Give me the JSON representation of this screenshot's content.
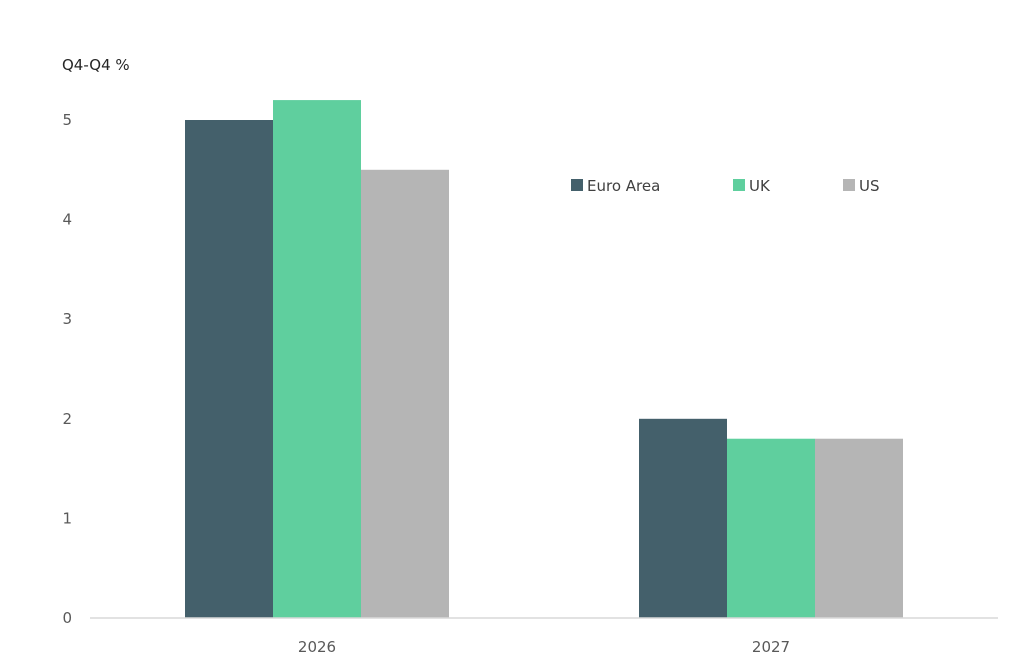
{
  "chart_data": {
    "type": "bar",
    "unit_label": "Q4-Q4 %",
    "categories": [
      "2026",
      "2027"
    ],
    "series": [
      {
        "name": "Euro Area",
        "color": "#44606b",
        "values": [
          5.0,
          2.0
        ]
      },
      {
        "name": "UK",
        "color": "#5fcf9e",
        "values": [
          5.2,
          1.8
        ]
      },
      {
        "name": "US",
        "color": "#b5b5b5",
        "values": [
          4.5,
          1.8
        ]
      }
    ],
    "ylim": [
      0,
      5
    ],
    "yticks": [
      0,
      1,
      2,
      3,
      4,
      5
    ],
    "grid": false,
    "legend_position": "top-right"
  }
}
